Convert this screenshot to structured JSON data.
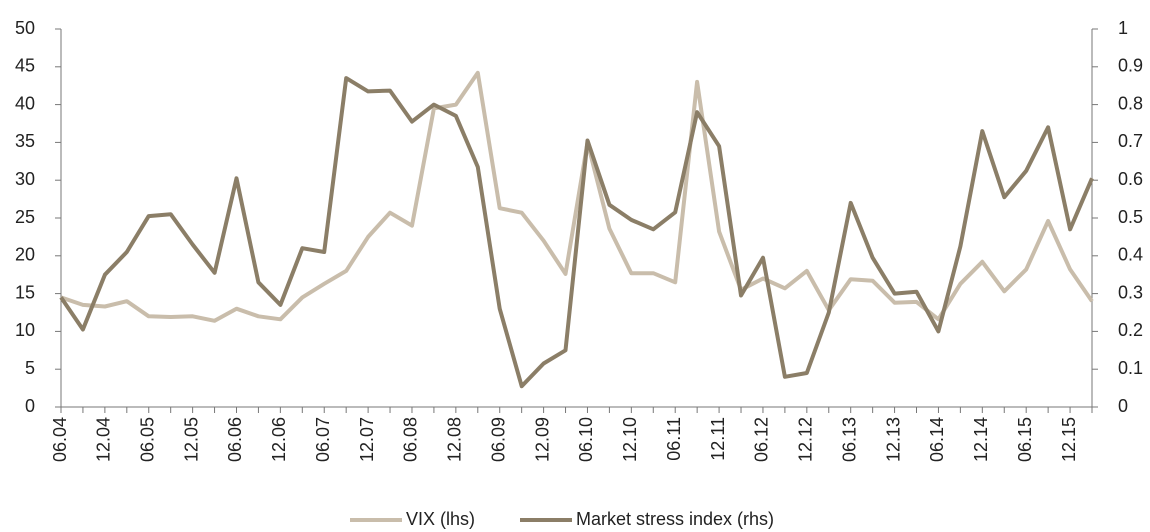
{
  "chart_data": {
    "type": "line",
    "categories": [
      "06.04",
      null,
      "12.04",
      null,
      "06.05",
      null,
      "12.05",
      null,
      "06.06",
      null,
      "12.06",
      null,
      "06.07",
      null,
      "12.07",
      null,
      "06.08",
      null,
      "12.08",
      null,
      "06.09",
      null,
      "12.09",
      null,
      "06.10",
      null,
      "12.10",
      null,
      "06.11",
      null,
      "12.11",
      null,
      "06.12",
      null,
      "12.12",
      null,
      "06.13",
      null,
      "12.13",
      null,
      "06.14",
      null,
      "12.14",
      null,
      "06.15",
      null,
      "12.15",
      null
    ],
    "series": [
      {
        "name": "VIX (lhs)",
        "color": "#c9bdab",
        "values": [
          14.5,
          13.5,
          13.3,
          14,
          12,
          11.9,
          12,
          11.4,
          13,
          12,
          11.6,
          14.5,
          16.3,
          18,
          22.5,
          25.7,
          24,
          39.5,
          40,
          44.2,
          26.3,
          25.7,
          22,
          17.6,
          35,
          23.6,
          17.7,
          17.7,
          16.5,
          43,
          23.2,
          15.5,
          17,
          15.7,
          18,
          12.8,
          16.9,
          16.7,
          13.8,
          13.9,
          11.6,
          16.3,
          19.2,
          15.3,
          18.2,
          24.6,
          18.2,
          14
        ]
      },
      {
        "name": "Market stress index (rhs)",
        "color": "#8b7e67",
        "axis": "y2",
        "values": [
          0.29,
          0.205,
          0.35,
          0.41,
          0.505,
          0.51,
          0.43,
          0.355,
          0.605,
          0.33,
          0.27,
          0.42,
          0.41,
          0.87,
          0.835,
          0.837,
          0.755,
          0.8,
          0.77,
          0.635,
          0.26,
          0.055,
          0.115,
          0.15,
          0.705,
          0.535,
          0.495,
          0.47,
          0.515,
          0.78,
          0.69,
          0.295,
          0.395,
          0.08,
          0.09,
          0.25,
          0.54,
          0.395,
          0.3,
          0.305,
          0.2,
          0.425,
          0.73,
          0.555,
          0.625,
          0.74,
          0.47,
          0.605
        ]
      }
    ],
    "ylim": [
      0,
      50
    ],
    "yticks": [
      0,
      5,
      10,
      15,
      20,
      25,
      30,
      35,
      40,
      45,
      50
    ],
    "y2lim": [
      0,
      1
    ],
    "y2ticks": [
      0,
      0.1,
      0.2,
      0.3,
      0.4,
      0.5,
      0.6,
      0.7,
      0.8,
      0.9,
      1
    ],
    "legend": "bottom"
  }
}
